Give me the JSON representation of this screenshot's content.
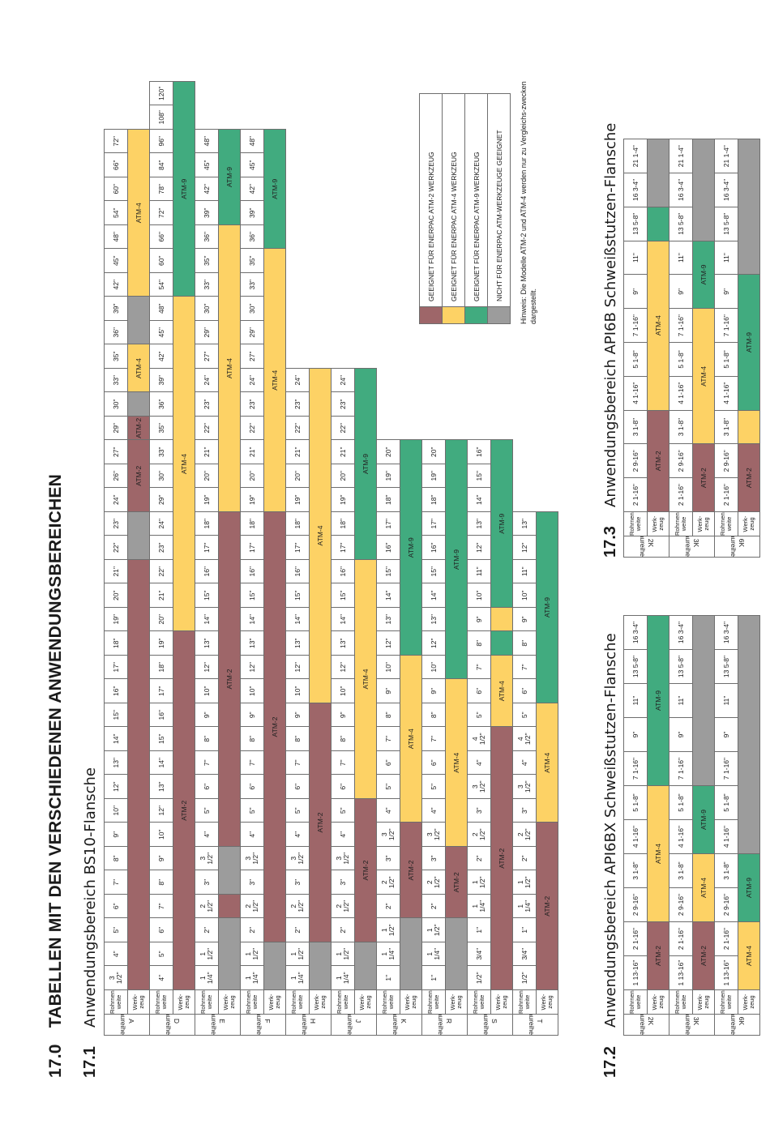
{
  "heading": {
    "num": "17.0",
    "title": "TABELLEN MIT DEN VERSCHIEDENEN ANWENDUNGSBEREICHEN"
  },
  "sec171": {
    "num": "17.1",
    "title": "Anwendungsbereich BS10-Flansche"
  },
  "sec172": {
    "num": "17.2",
    "title": "Anwendungsbereich API6BX Schweißstutzen-Flansche"
  },
  "sec173": {
    "num": "17.3",
    "title": "Anwendungsbereich API6B Schweißstutzen-Flansche"
  },
  "labels": {
    "baureihe": "Baureihe",
    "rohrnennweite": "Rohrnenn-weite",
    "werkzeug": "Werk-zeug"
  },
  "colors": {
    "ATM-2": "#9e6669",
    "ATM-4": "#fdd265",
    "ATM-9": "#41ab7f",
    "none": "#9c9c9c",
    "blank": "#ffffff"
  },
  "bs10": [
    {
      "series": "A",
      "sizes": [
        "3\n1/2\"",
        "4\"",
        "5\"",
        "6\"",
        "7\"",
        "8\"",
        "9\"",
        "10\"",
        "12\"",
        "13\"",
        "14\"",
        "15\"",
        "16\"",
        "17\"",
        "18\"",
        "19\"",
        "20\"",
        "21\"",
        "22\"",
        "23\"",
        "24\"",
        "26\"",
        "27\"",
        "29\"",
        "30\"",
        "33\"",
        "35\"",
        "36\"",
        "39\"",
        "42\"",
        "45\"",
        "48\"",
        "54\"",
        "60\"",
        "66\"",
        "72\""
      ],
      "tools": [
        [
          "ATM-2",
          18,
          ""
        ],
        [
          "none",
          2,
          ""
        ],
        [
          "ATM-2",
          3,
          "ATM-2"
        ],
        [
          "ATM-2",
          1,
          "ATM-2"
        ],
        [
          "none",
          1,
          ""
        ],
        [
          "ATM-4",
          2,
          "ATM-4"
        ],
        [
          "none",
          2,
          ""
        ],
        [
          "ATM-4",
          7,
          "ATM-4"
        ]
      ]
    },
    {
      "series": "D",
      "sizes": [
        "4\"",
        "5\"",
        "6\"",
        "7\"",
        "8\"",
        "9\"",
        "10\"",
        "12\"",
        "13\"",
        "14\"",
        "15\"",
        "16\"",
        "17\"",
        "18\"",
        "19\"",
        "20\"",
        "21\"",
        "22\"",
        "23\"",
        "24\"",
        "29\"",
        "30\"",
        "33\"",
        "35\"",
        "36\"",
        "39\"",
        "42\"",
        "45\"",
        "48\"",
        "54\"",
        "60\"",
        "66\"",
        "72\"",
        "78\"",
        "84\"",
        "96\"",
        "108\"",
        "120\""
      ],
      "tools": [
        [
          "ATM-2",
          15,
          "ATM-2"
        ],
        [
          "ATM-4",
          14,
          "ATM-4"
        ],
        [
          "ATM-9",
          9,
          "ATM-9"
        ]
      ]
    },
    {
      "series": "E",
      "sizes": [
        "1\n1/4\"",
        "1\n1/2\"",
        "2\"",
        "2\n1/2\"",
        "3\"",
        "3\n1/2\"",
        "4\"",
        "5\"",
        "6\"",
        "7\"",
        "8\"",
        "9\"",
        "10\"",
        "12\"",
        "13\"",
        "14\"",
        "15\"",
        "16\"",
        "17\"",
        "18\"",
        "19\"",
        "20\"",
        "21\"",
        "22\"",
        "23\"",
        "24\"",
        "27\"",
        "29\"",
        "30\"",
        "33\"",
        "35\"",
        "36\"",
        "39\"",
        "42\"",
        "45\"",
        "48\""
      ],
      "tools": [
        [
          "none",
          3,
          ""
        ],
        [
          "ATM-2",
          1,
          ""
        ],
        [
          "none",
          2,
          ""
        ],
        [
          "ATM-2",
          14,
          "ATM-2"
        ],
        [
          "ATM-4",
          12,
          "ATM-4"
        ],
        [
          "ATM-9",
          4,
          "ATM-9"
        ]
      ]
    },
    {
      "series": "F",
      "sizes": [
        "1\n1/4\"",
        "1\n1/2\"",
        "2\"",
        "2\n1/2\"",
        "3\"",
        "3\n1/2\"",
        "4\"",
        "5\"",
        "6\"",
        "7\"",
        "8\"",
        "9\"",
        "10\"",
        "12\"",
        "13\"",
        "14\"",
        "15\"",
        "16\"",
        "17\"",
        "18\"",
        "19\"",
        "20\"",
        "21\"",
        "22\"",
        "23\"",
        "24\"",
        "27\"",
        "29\"",
        "30\"",
        "33\"",
        "35\"",
        "36\"",
        "39\"",
        "42\"",
        "45\"",
        "48\""
      ],
      "tools": [
        [
          "none",
          2,
          ""
        ],
        [
          "ATM-2",
          18,
          "ATM-2"
        ],
        [
          "ATM-4",
          11,
          "ATM-4"
        ],
        [
          "ATM-9",
          5,
          "ATM-9"
        ]
      ]
    },
    {
      "series": "H",
      "sizes": [
        "1\n1/4\"",
        "1\n1/2\"",
        "2\"",
        "2\n1/2\"",
        "3\"",
        "3\n1/2\"",
        "4\"",
        "5\"",
        "6\"",
        "7\"",
        "8\"",
        "9\"",
        "10\"",
        "12\"",
        "13\"",
        "14\"",
        "15\"",
        "16\"",
        "17\"",
        "18\"",
        "19\"",
        "20\"",
        "21\"",
        "22\"",
        "23\"",
        "24\""
      ],
      "tools": [
        [
          "none",
          2,
          ""
        ],
        [
          "ATM-2",
          10,
          "ATM-2"
        ],
        [
          "ATM-4",
          14,
          "ATM-4"
        ]
      ]
    },
    {
      "series": "J",
      "sizes": [
        "1\n1/4\"",
        "1\n1/2\"",
        "2\"",
        "2\n1/2\"",
        "3\"",
        "3\n1/2\"",
        "4\"",
        "5\"",
        "6\"",
        "7\"",
        "8\"",
        "9\"",
        "10\"",
        "12\"",
        "13\"",
        "14\"",
        "15\"",
        "16\"",
        "17\"",
        "18\"",
        "19\"",
        "20\"",
        "21\"",
        "22\"",
        "23\"",
        "24\""
      ],
      "tools": [
        [
          "none",
          2,
          ""
        ],
        [
          "ATM-2",
          6,
          "ATM-2"
        ],
        [
          "ATM-4",
          10,
          "ATM-4"
        ],
        [
          "ATM-9",
          8,
          "ATM-9"
        ]
      ]
    },
    {
      "series": "K",
      "sizes": [
        "1\"",
        "1\n1/4\"",
        "1\n1/2\"",
        "2\"",
        "2\n1/2\"",
        "3\"",
        "3\n1/2\"",
        "4\"",
        "5\"",
        "6\"",
        "7\"",
        "8\"",
        "9\"",
        "10\"",
        "12\"",
        "13\"",
        "14\"",
        "15\"",
        "16\"",
        "17\"",
        "18\"",
        "19\"",
        "20\""
      ],
      "tools": [
        [
          "none",
          3,
          ""
        ],
        [
          "ATM-2",
          4,
          "ATM-2"
        ],
        [
          "ATM-4",
          7,
          "ATM-4"
        ],
        [
          "ATM-9",
          9,
          "ATM-9"
        ]
      ]
    },
    {
      "series": "R",
      "sizes": [
        "1\"",
        "1\n1/4\"",
        "1\n1/2\"",
        "2\"",
        "2\n1/2\"",
        "3\"",
        "3\n1/2\"",
        "4\"",
        "5\"",
        "6\"",
        "7\"",
        "8\"",
        "9\"",
        "10\"",
        "12\"",
        "13\"",
        "14\"",
        "15\"",
        "16\"",
        "17\"",
        "18\"",
        "19\"",
        "20\""
      ],
      "tools": [
        [
          "none",
          3,
          ""
        ],
        [
          "ATM-2",
          3,
          "ATM-2"
        ],
        [
          "ATM-4",
          7,
          "ATM-4"
        ],
        [
          "ATM-9",
          10,
          "ATM-9"
        ]
      ]
    },
    {
      "series": "S",
      "sizes": [
        "1/2\"",
        "3/4\"",
        "1\"",
        "1\n1/4\"",
        "1\n1/2\"",
        "2\"",
        "2\n1/2\"",
        "3\"",
        "3\n1/2\"",
        "4\"",
        "4\n1/2\"",
        "5\"",
        "6\"",
        "7\"",
        "8\"",
        "9\"",
        "10\"",
        "11\"",
        "12\"",
        "13\"",
        "14\"",
        "15\"",
        "16\""
      ],
      "tools": [
        [
          "ATM-2",
          11,
          "ATM-2"
        ],
        [
          "ATM-4",
          3,
          "ATM-4"
        ],
        [
          "ATM-9",
          1,
          ""
        ],
        [
          "ATM-4",
          1,
          ""
        ],
        [
          "ATM-9",
          7,
          "ATM-9"
        ]
      ]
    },
    {
      "series": "T",
      "sizes": [
        "1/2\"",
        "3/4\"",
        "1\"",
        "1\n1/4\"",
        "1\n1/2\"",
        "2\"",
        "2\n1/2\"",
        "3\"",
        "3\n1/2\"",
        "4\"",
        "4\n1/2\"",
        "5\"",
        "6\"",
        "7\"",
        "8\"",
        "9\"",
        "10\"",
        "11\"",
        "12\"",
        "13\""
      ],
      "tools": [
        [
          "ATM-2",
          7,
          "ATM-2"
        ],
        [
          "ATM-4",
          5,
          "ATM-4"
        ],
        [
          "ATM-9",
          8,
          "ATM-9"
        ]
      ]
    }
  ],
  "api6bx": [
    {
      "series": "2K",
      "sizes": [
        "1 13-16\"",
        "2 1-16\"",
        "2 9-16\"",
        "3 1-8\"",
        "4 1-16\"",
        "5 1-8\"",
        "7 1-16\"",
        "9\"",
        "11\"",
        "13 5-8\"",
        "16 3-4\""
      ],
      "tools": [
        [
          "ATM-2",
          2,
          "ATM-2"
        ],
        [
          "ATM-4",
          4,
          "ATM-4"
        ],
        [
          "ATM-9",
          5,
          "ATM-9"
        ]
      ]
    },
    {
      "series": "3K",
      "sizes": [
        "1 13-16\"",
        "2 1-16\"",
        "2 9-16\"",
        "3 1-8\"",
        "4 1-16\"",
        "5 1-8\"",
        "7 1-16\"",
        "9\"",
        "11\"",
        "13 5-8\"",
        "16 3-4\""
      ],
      "tools": [
        [
          "ATM-2",
          2,
          "ATM-2"
        ],
        [
          "ATM-4",
          2,
          "ATM-4"
        ],
        [
          "ATM-9",
          2,
          "ATM-9"
        ],
        [
          "none",
          5,
          ""
        ]
      ]
    },
    {
      "series": "6K",
      "sizes": [
        "1 13-16\"",
        "2 1-16\"",
        "2 9-16\"",
        "3 1-8\"",
        "4 1-16\"",
        "5 1-8\"",
        "7 1-16\"",
        "9\"",
        "11\"",
        "13 5-8\"",
        "16 3-4\""
      ],
      "tools": [
        [
          "ATM-4",
          2,
          "ATM-4"
        ],
        [
          "ATM-9",
          2,
          "ATM-9"
        ],
        [
          "none",
          7,
          ""
        ]
      ]
    }
  ],
  "api6b": [
    {
      "series": "2K",
      "sizes": [
        "2 1-16\"",
        "2 9-16\"",
        "3 1-8\"",
        "4 1-16\"",
        "5 1-8\"",
        "7 1-16\"",
        "9\"",
        "11\"",
        "13 5-8\"",
        "16 3-4\"",
        "21 1-4\""
      ],
      "tools": [
        [
          "ATM-2",
          3,
          "ATM-2"
        ],
        [
          "ATM-4",
          5,
          "ATM-4"
        ],
        [
          "ATM-9",
          1,
          ""
        ],
        [
          "none",
          2,
          ""
        ]
      ]
    },
    {
      "series": "3K",
      "sizes": [
        "2 1-16\"",
        "2 9-16\"",
        "3 1-8\"",
        "4 1-16\"",
        "5 1-8\"",
        "7 1-16\"",
        "9\"",
        "11\"",
        "13 5-8\"",
        "16 3-4\"",
        "21 1-4\""
      ],
      "tools": [
        [
          "ATM-2",
          2,
          "ATM-2"
        ],
        [
          "ATM-4",
          4,
          "ATM-4"
        ],
        [
          "ATM-9",
          2,
          "ATM-9"
        ],
        [
          "none",
          3,
          ""
        ]
      ]
    },
    {
      "series": "6K",
      "sizes": [
        "2 1-16\"",
        "2 9-16\"",
        "3 1-8\"",
        "4 1-16\"",
        "5 1-8\"",
        "7 1-16\"",
        "9\"",
        "11\"",
        "13 5-8\"",
        "16 3-4\"",
        "21 1-4\""
      ],
      "tools": [
        [
          "ATM-2",
          2,
          "ATM-2"
        ],
        [
          "ATM-4",
          1,
          ""
        ],
        [
          "ATM-9",
          4,
          "ATM-9"
        ],
        [
          "none",
          4,
          ""
        ]
      ]
    }
  ],
  "legend": [
    {
      "key": "ATM-2",
      "text": "GEEIGNET FÜR ENERPAC ATM-2 WERKZEUG"
    },
    {
      "key": "ATM-4",
      "text": "GEEIGNET FÜR ENERPAC ATM-4 WERKZEUG"
    },
    {
      "key": "ATM-9",
      "text": "GEEIGNET FÜR ENERPAC ATM-9 WERKZEUG"
    },
    {
      "key": "none",
      "text": "NICHT FÜR ENERPAC ATM-WERKZEUGE GEEIGNET"
    }
  ],
  "note": "Hinweis: Die Modelle ATM-2 und ATM-4 werden nur zu Vergleichs-zwecken dargestellt."
}
